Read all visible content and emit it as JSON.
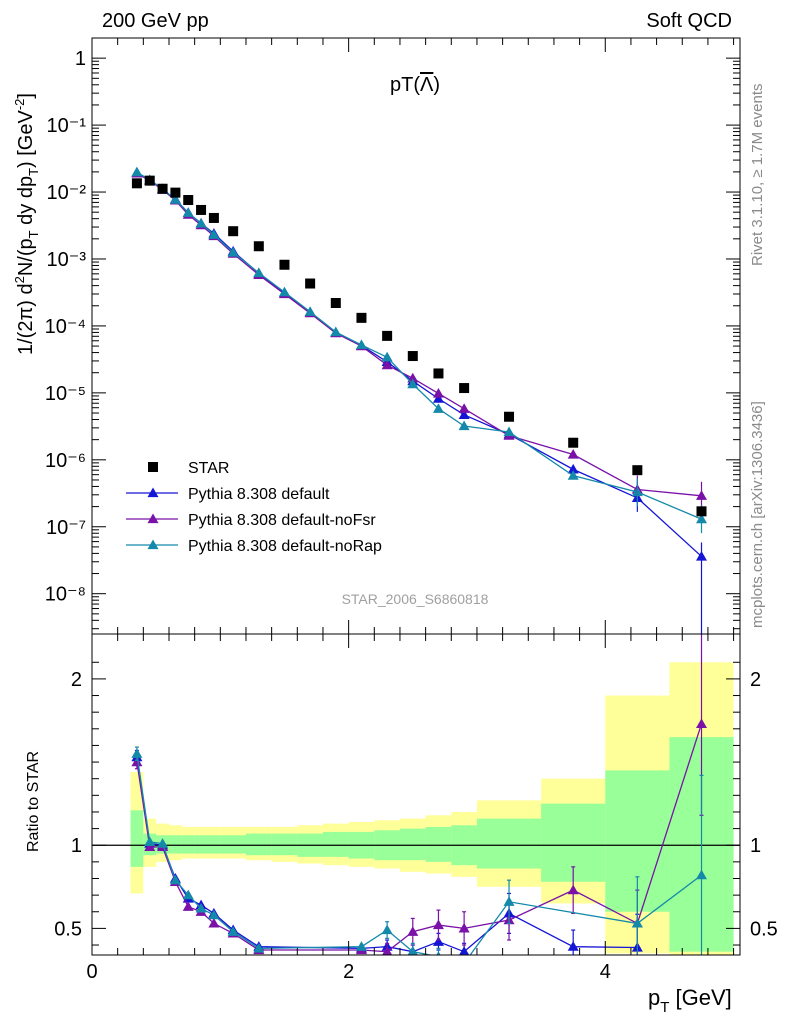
{
  "header": {
    "left": "200 GeV pp",
    "right": "Soft QCD"
  },
  "side_text": {
    "rivet": "Rivet 3.1.10, ≥ 1.7M events",
    "mcplots": "mcplots.cern.ch [arXiv:1306.3436]"
  },
  "chart_data": [
    {
      "type": "scatter",
      "panel": "main",
      "title": "pT(Λ̅)",
      "title_base": "pT(",
      "title_sym": "Λ",
      "title_end": ")",
      "watermark": "STAR_2006_S6860818",
      "ylabel": "1/(2π) d²N/(pT dy dpT) [GeV⁻²]",
      "yscale": "log",
      "xlim": [
        0,
        5.05
      ],
      "ylim": [
        2.5e-09,
        2
      ],
      "yticks": [
        {
          "label": "1",
          "value": 1
        },
        {
          "label": "10⁻¹",
          "value": 0.1
        },
        {
          "label": "10⁻²",
          "value": 0.01
        },
        {
          "label": "10⁻³",
          "value": 0.001
        },
        {
          "label": "10⁻⁴",
          "value": 0.0001
        },
        {
          "label": "10⁻⁵",
          "value": 1e-05
        },
        {
          "label": "10⁻⁶",
          "value": 1e-06
        },
        {
          "label": "10⁻⁷",
          "value": 1e-07
        },
        {
          "label": "10⁻⁸",
          "value": 1e-08
        }
      ],
      "legend_position": "bottom-left",
      "series": [
        {
          "name": "STAR",
          "marker": "square",
          "color": "#000000",
          "x": [
            0.35,
            0.45,
            0.55,
            0.65,
            0.75,
            0.85,
            0.95,
            1.1,
            1.3,
            1.5,
            1.7,
            1.9,
            2.1,
            2.3,
            2.5,
            2.7,
            2.9,
            3.25,
            3.75,
            4.25,
            4.75
          ],
          "y": [
            0.0135,
            0.0148,
            0.0112,
            0.0098,
            0.0076,
            0.0054,
            0.0041,
            0.0026,
            0.00155,
            0.00082,
            0.00043,
            0.00022,
            0.000132,
            7.1e-05,
            3.55e-05,
            1.95e-05,
            1.18e-05,
            4.4e-06,
            1.8e-06,
            7e-07,
            1.7e-07
          ]
        },
        {
          "name": "Pythia 8.308 default",
          "marker": "triangle",
          "color": "#1515d6",
          "x": [
            0.35,
            0.45,
            0.55,
            0.65,
            0.75,
            0.85,
            0.95,
            1.1,
            1.3,
            1.5,
            1.7,
            1.9,
            2.1,
            2.3,
            2.5,
            2.7,
            2.9,
            3.25,
            3.75,
            4.25,
            4.75
          ],
          "y": [
            0.0195,
            0.015,
            0.011,
            0.0078,
            0.0049,
            0.0034,
            0.0024,
            0.0013,
            0.00061,
            0.00031,
            0.00016,
            7.9e-05,
            5.1e-05,
            2.9e-05,
            1.5e-05,
            8.2e-06,
            4.7e-06,
            2.4e-06,
            7.2e-07,
            2.7e-07,
            3.6e-08
          ]
        },
        {
          "name": "Pythia 8.308 default-noFsr",
          "marker": "triangle",
          "color": "#7a12a8",
          "x": [
            0.35,
            0.45,
            0.55,
            0.65,
            0.75,
            0.85,
            0.95,
            1.1,
            1.3,
            1.5,
            1.7,
            1.9,
            2.1,
            2.3,
            2.5,
            2.7,
            2.9,
            3.25,
            3.75,
            4.25,
            4.75
          ],
          "y": [
            0.019,
            0.0148,
            0.0108,
            0.0075,
            0.0046,
            0.0032,
            0.0022,
            0.0012,
            0.00058,
            0.0003,
            0.000155,
            7.8e-05,
            5e-05,
            2.6e-05,
            1.65e-05,
            9.8e-06,
            5.8e-06,
            2.3e-06,
            1.2e-06,
            3.6e-07,
            2.9e-07
          ]
        },
        {
          "name": "Pythia 8.308 default-noRap",
          "marker": "triangle",
          "color": "#1489aa",
          "x": [
            0.35,
            0.45,
            0.55,
            0.65,
            0.75,
            0.85,
            0.95,
            1.1,
            1.3,
            1.5,
            1.7,
            1.9,
            2.1,
            2.3,
            2.5,
            2.7,
            2.9,
            3.25,
            3.75,
            4.25,
            4.75
          ],
          "y": [
            0.0198,
            0.0152,
            0.0112,
            0.0077,
            0.0049,
            0.0034,
            0.0023,
            0.00125,
            0.00062,
            0.00032,
            0.000163,
            8.1e-05,
            5.2e-05,
            3.4e-05,
            1.35e-05,
            5.8e-06,
            3.2e-06,
            2.6e-06,
            5.8e-07,
            3.3e-07,
            1.3e-07
          ]
        }
      ]
    },
    {
      "type": "line",
      "panel": "ratio",
      "ylabel": "Ratio to STAR",
      "xlabel": "pT [GeV]",
      "xlim": [
        0,
        5.05
      ],
      "ylim": [
        0.34,
        2.27
      ],
      "xticks": [
        {
          "label": "0",
          "value": 0
        },
        {
          "label": "2",
          "value": 2
        },
        {
          "label": "4",
          "value": 4
        }
      ],
      "yticks": [
        {
          "label": "0.5",
          "value": 0.5
        },
        {
          "label": "1",
          "value": 1
        },
        {
          "label": "2",
          "value": 2
        }
      ],
      "bands": {
        "edges": [
          0.3,
          0.4,
          0.5,
          0.6,
          0.7,
          0.8,
          0.9,
          1.0,
          1.2,
          1.4,
          1.6,
          1.8,
          2.0,
          2.2,
          2.4,
          2.6,
          2.8,
          3.0,
          3.5,
          4.0,
          4.5,
          5.0
        ],
        "yellow": [
          [
            0.71,
            1.44
          ],
          [
            0.87,
            1.16
          ],
          [
            0.9,
            1.13
          ],
          [
            0.91,
            1.12
          ],
          [
            0.92,
            1.11
          ],
          [
            0.92,
            1.11
          ],
          [
            0.92,
            1.11
          ],
          [
            0.92,
            1.11
          ],
          [
            0.91,
            1.11
          ],
          [
            0.9,
            1.11
          ],
          [
            0.89,
            1.12
          ],
          [
            0.88,
            1.13
          ],
          [
            0.87,
            1.14
          ],
          [
            0.86,
            1.15
          ],
          [
            0.84,
            1.16
          ],
          [
            0.83,
            1.18
          ],
          [
            0.81,
            1.2
          ],
          [
            0.75,
            1.27
          ],
          [
            0.65,
            1.4
          ],
          [
            0.35,
            1.9
          ],
          [
            0.3,
            2.1
          ]
        ],
        "green": [
          [
            0.87,
            1.21
          ],
          [
            0.94,
            1.07
          ],
          [
            0.95,
            1.06
          ],
          [
            0.95,
            1.06
          ],
          [
            0.95,
            1.06
          ],
          [
            0.95,
            1.06
          ],
          [
            0.95,
            1.06
          ],
          [
            0.95,
            1.06
          ],
          [
            0.94,
            1.07
          ],
          [
            0.94,
            1.07
          ],
          [
            0.93,
            1.07
          ],
          [
            0.93,
            1.08
          ],
          [
            0.92,
            1.08
          ],
          [
            0.91,
            1.09
          ],
          [
            0.91,
            1.1
          ],
          [
            0.9,
            1.11
          ],
          [
            0.88,
            1.12
          ],
          [
            0.86,
            1.16
          ],
          [
            0.78,
            1.25
          ],
          [
            0.6,
            1.45
          ],
          [
            0.36,
            1.65
          ]
        ]
      },
      "reference": 1,
      "series": [
        {
          "name": "Pythia 8.308 default",
          "color": "#1515d6",
          "x": [
            0.35,
            0.45,
            0.55,
            0.65,
            0.75,
            0.85,
            0.95,
            1.1,
            1.3,
            2.1,
            2.3,
            2.5,
            2.7,
            2.9,
            3.25,
            3.75,
            4.25
          ],
          "y": [
            1.53,
            1.01,
            1.0,
            0.8,
            0.68,
            0.64,
            0.59,
            0.49,
            0.39,
            0.38,
            0.39,
            0.36,
            0.42,
            0.36,
            0.59,
            0.39,
            0.385
          ],
          "err": [
            0.04,
            0.02,
            0.02,
            0.02,
            0.02,
            0.02,
            0.02,
            0.02,
            0.02,
            0.03,
            0.04,
            0.04,
            0.05,
            0.05,
            0.12,
            0.1,
            0.2
          ]
        },
        {
          "name": "Pythia 8.308 default-noFsr",
          "color": "#7a12a8",
          "x": [
            0.35,
            0.45,
            0.55,
            0.65,
            0.75,
            0.85,
            0.95,
            1.1,
            1.3,
            2.1,
            2.3,
            2.5,
            2.7,
            2.9,
            3.25,
            3.75,
            4.25,
            4.75
          ],
          "y": [
            1.5,
            0.99,
            0.99,
            0.78,
            0.63,
            0.6,
            0.53,
            0.47,
            0.37,
            0.37,
            0.36,
            0.48,
            0.52,
            0.5,
            0.55,
            0.73,
            0.53,
            1.73
          ],
          "err": [
            0.04,
            0.02,
            0.02,
            0.02,
            0.02,
            0.02,
            0.02,
            0.02,
            0.02,
            0.03,
            0.05,
            0.08,
            0.09,
            0.1,
            0.12,
            0.14,
            0.2,
            0.55
          ]
        },
        {
          "name": "Pythia 8.308 default-noRap",
          "color": "#1489aa",
          "x": [
            0.35,
            0.45,
            0.55,
            0.65,
            0.75,
            0.85,
            0.95,
            1.1,
            1.3,
            2.1,
            2.3,
            2.5,
            2.7,
            2.9,
            3.25,
            4.25,
            4.75
          ],
          "y": [
            1.55,
            1.02,
            1.01,
            0.79,
            0.7,
            0.62,
            0.58,
            0.48,
            0.38,
            0.39,
            0.49,
            0.36,
            0.33,
            0.29,
            0.66,
            0.53,
            0.82
          ],
          "err": [
            0.04,
            0.02,
            0.02,
            0.02,
            0.02,
            0.02,
            0.02,
            0.02,
            0.02,
            0.03,
            0.05,
            0.05,
            0.05,
            0.05,
            0.13,
            0.28,
            0.6
          ]
        }
      ]
    }
  ]
}
